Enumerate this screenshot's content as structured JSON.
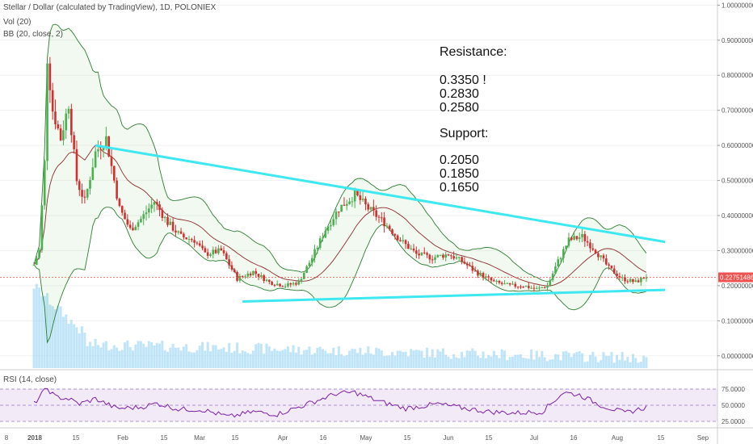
{
  "legend": {
    "symbol": "Stellar / Dollar (calculated by TradingView), 1D, POLONIEX",
    "vol": "Vol (20)",
    "bb": "BB (20, close, 2)",
    "rsi": "RSI (14, close)"
  },
  "annotation": {
    "resistance_title": "Resistance:",
    "resistance_levels": [
      "0.3350 !",
      "0.2830",
      "0.2580"
    ],
    "support_title": "Support:",
    "support_levels": [
      "0.2050",
      "0.1850",
      "0.1650"
    ]
  },
  "colors": {
    "price_up": "#4caf50",
    "price_down": "#d32f2f",
    "trendline": "#3ee8f0",
    "bb_band": "#2e7d32",
    "bb_basis": "#8e2b2b",
    "volume": "#8ecff2",
    "rsi": "#7b1fa2",
    "current_price": "#ef5350"
  },
  "chart_data": {
    "type": "candlestick",
    "price_axis": {
      "ticks": [
        "1.00000000",
        "0.90000000",
        "0.80000000",
        "0.70000000",
        "0.60000000",
        "0.50000000",
        "0.40000000",
        "0.30000000",
        "0.20000000",
        "0.10000000",
        "0.00000000"
      ],
      "range": [
        -0.035,
        1.01
      ]
    },
    "rsi_axis": {
      "ticks": [
        "75.0000",
        "50.0000",
        "25.0000"
      ]
    },
    "x_axis": {
      "ticks": [
        "8",
        "2018",
        "15",
        "Feb",
        "15",
        "Mar",
        "15",
        "Apr",
        "16",
        "May",
        "15",
        "Jun",
        "15",
        "Jul",
        "16",
        "Aug",
        "15",
        "Sep"
      ]
    },
    "current_price_label": "0.22751486",
    "trendlines": [
      {
        "name": "resistance",
        "from": [
          "2018-01-24",
          0.6
        ],
        "to": [
          "2018-08-25",
          0.325
        ]
      },
      {
        "name": "support",
        "from": [
          "2018-03-20",
          0.155
        ],
        "to": [
          "2018-08-25",
          0.188
        ]
      }
    ],
    "price_path": [
      [
        "2018-01-01",
        0.26
      ],
      [
        "2018-01-03",
        0.3
      ],
      [
        "2018-01-05",
        0.55
      ],
      [
        "2018-01-06",
        0.85
      ],
      [
        "2018-01-08",
        0.7
      ],
      [
        "2018-01-11",
        0.62
      ],
      [
        "2018-01-14",
        0.72
      ],
      [
        "2018-01-17",
        0.5
      ],
      [
        "2018-01-20",
        0.44
      ],
      [
        "2018-01-24",
        0.58
      ],
      [
        "2018-01-28",
        0.62
      ],
      [
        "2018-02-02",
        0.42
      ],
      [
        "2018-02-06",
        0.36
      ],
      [
        "2018-02-10",
        0.39
      ],
      [
        "2018-02-15",
        0.44
      ],
      [
        "2018-02-20",
        0.38
      ],
      [
        "2018-02-25",
        0.34
      ],
      [
        "2018-03-02",
        0.33
      ],
      [
        "2018-03-06",
        0.29
      ],
      [
        "2018-03-12",
        0.3
      ],
      [
        "2018-03-18",
        0.22
      ],
      [
        "2018-03-24",
        0.24
      ],
      [
        "2018-03-30",
        0.21
      ],
      [
        "2018-04-05",
        0.2
      ],
      [
        "2018-04-10",
        0.21
      ],
      [
        "2018-04-15",
        0.28
      ],
      [
        "2018-04-20",
        0.36
      ],
      [
        "2018-04-25",
        0.42
      ],
      [
        "2018-05-01",
        0.46
      ],
      [
        "2018-05-06",
        0.42
      ],
      [
        "2018-05-12",
        0.38
      ],
      [
        "2018-05-18",
        0.33
      ],
      [
        "2018-05-24",
        0.29
      ],
      [
        "2018-05-30",
        0.28
      ],
      [
        "2018-06-05",
        0.29
      ],
      [
        "2018-06-10",
        0.27
      ],
      [
        "2018-06-15",
        0.24
      ],
      [
        "2018-06-22",
        0.21
      ],
      [
        "2018-06-28",
        0.2
      ],
      [
        "2018-07-03",
        0.2
      ],
      [
        "2018-07-08",
        0.19
      ],
      [
        "2018-07-12",
        0.2
      ],
      [
        "2018-07-16",
        0.27
      ],
      [
        "2018-07-20",
        0.33
      ],
      [
        "2018-07-25",
        0.34
      ],
      [
        "2018-07-30",
        0.3
      ],
      [
        "2018-08-04",
        0.25
      ],
      [
        "2018-08-09",
        0.22
      ],
      [
        "2018-08-14",
        0.21
      ],
      [
        "2018-08-18",
        0.227
      ]
    ],
    "rsi_path": [
      [
        "2018-01-01",
        52
      ],
      [
        "2018-01-04",
        68
      ],
      [
        "2018-01-06",
        76
      ],
      [
        "2018-01-09",
        63
      ],
      [
        "2018-01-14",
        60
      ],
      [
        "2018-01-18",
        52
      ],
      [
        "2018-01-24",
        60
      ],
      [
        "2018-02-01",
        45
      ],
      [
        "2018-02-10",
        47
      ],
      [
        "2018-02-16",
        53
      ],
      [
        "2018-02-24",
        44
      ],
      [
        "2018-03-05",
        43
      ],
      [
        "2018-03-15",
        32
      ],
      [
        "2018-03-24",
        40
      ],
      [
        "2018-04-02",
        36
      ],
      [
        "2018-04-12",
        50
      ],
      [
        "2018-04-24",
        68
      ],
      [
        "2018-05-01",
        70
      ],
      [
        "2018-05-10",
        56
      ],
      [
        "2018-05-20",
        45
      ],
      [
        "2018-06-01",
        52
      ],
      [
        "2018-06-10",
        46
      ],
      [
        "2018-06-20",
        40
      ],
      [
        "2018-06-30",
        38
      ],
      [
        "2018-07-10",
        40
      ],
      [
        "2018-07-18",
        70
      ],
      [
        "2018-07-24",
        66
      ],
      [
        "2018-08-01",
        50
      ],
      [
        "2018-08-10",
        38
      ],
      [
        "2018-08-18",
        47
      ]
    ]
  }
}
